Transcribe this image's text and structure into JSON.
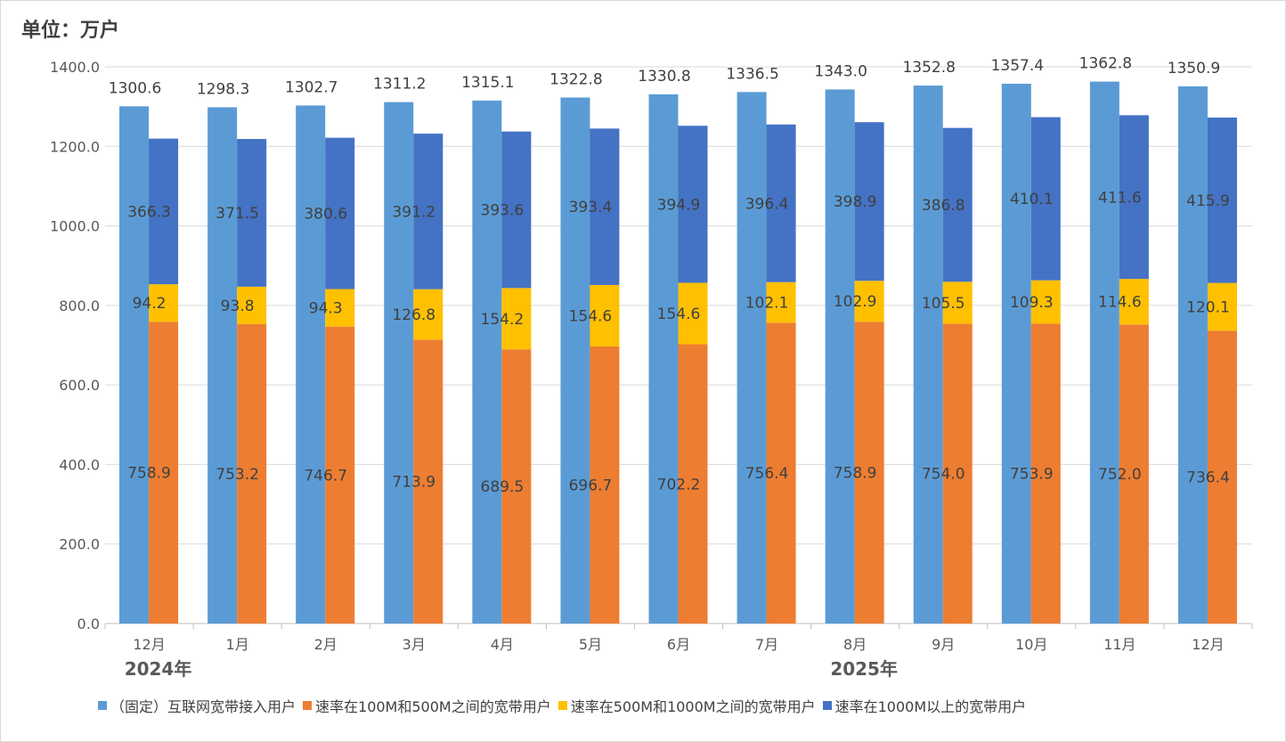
{
  "chart_data": {
    "type": "bar",
    "unit_label": "单位：万户",
    "categories": [
      "12月",
      "1月",
      "2月",
      "3月",
      "4月",
      "5月",
      "6月",
      "7月",
      "8月",
      "9月",
      "10月",
      "11月",
      "12月"
    ],
    "year_labels": [
      {
        "label": "2024年",
        "category_index": 0
      },
      {
        "label": "2025年",
        "category_index": 8
      }
    ],
    "ylim": [
      0,
      1400
    ],
    "yticks": [
      0,
      200,
      400,
      600,
      800,
      1000,
      1200,
      1400
    ],
    "ytick_labels": [
      "0.0",
      "200.0",
      "400.0",
      "600.0",
      "800.0",
      "1000.0",
      "1200.0",
      "1400.0"
    ],
    "grid": true,
    "total_series": {
      "name": "（固定）互联网宽带接入用户",
      "color": "#5B9BD5",
      "values": [
        1300.6,
        1298.3,
        1302.7,
        1311.2,
        1315.1,
        1322.8,
        1330.8,
        1336.5,
        1343.0,
        1352.8,
        1357.4,
        1362.8,
        1350.9
      ],
      "labels": [
        "1300.6",
        "1298.3",
        "1302.7",
        "1311.2",
        "1315.1",
        "1322.8",
        "1330.8",
        "1336.5",
        "1343.0",
        "1352.8",
        "1357.4",
        "1362.8",
        "1350.9"
      ]
    },
    "stacked_series": [
      {
        "name": "速率在100M和500M之间的宽带用户",
        "color": "#ED7D31",
        "values": [
          758.9,
          753.2,
          746.7,
          713.9,
          689.5,
          696.7,
          702.2,
          756.4,
          758.9,
          754.0,
          753.9,
          752.0,
          736.4
        ],
        "labels": [
          "758.9",
          "753.2",
          "746.7",
          "713.9",
          "689.5",
          "696.7",
          "702.2",
          "756.4",
          "758.9",
          "754.0",
          "753.9",
          "752.0",
          "736.4"
        ]
      },
      {
        "name": "速率在500M和1000M之间的宽带用户",
        "color": "#FFC000",
        "values": [
          94.2,
          93.8,
          94.3,
          126.8,
          154.2,
          154.6,
          154.6,
          102.1,
          102.9,
          105.5,
          109.3,
          114.6,
          120.1
        ],
        "labels": [
          "94.2",
          "93.8",
          "94.3",
          "126.8",
          "154.2",
          "154.6",
          "154.6",
          "102.1",
          "102.9",
          "105.5",
          "109.3",
          "114.6",
          "120.1"
        ]
      },
      {
        "name": "速率在1000M以上的宽带用户",
        "color": "#4472C4",
        "values": [
          366.3,
          371.5,
          380.6,
          391.2,
          393.6,
          393.4,
          394.9,
          396.4,
          398.9,
          386.8,
          410.1,
          411.6,
          415.9
        ],
        "labels": [
          "366.3",
          "371.5",
          "380.6",
          "391.2",
          "393.6",
          "393.4",
          "394.9",
          "396.4",
          "398.9",
          "386.8",
          "410.1",
          "411.6",
          "415.9"
        ]
      }
    ],
    "legend_position": "bottom"
  }
}
